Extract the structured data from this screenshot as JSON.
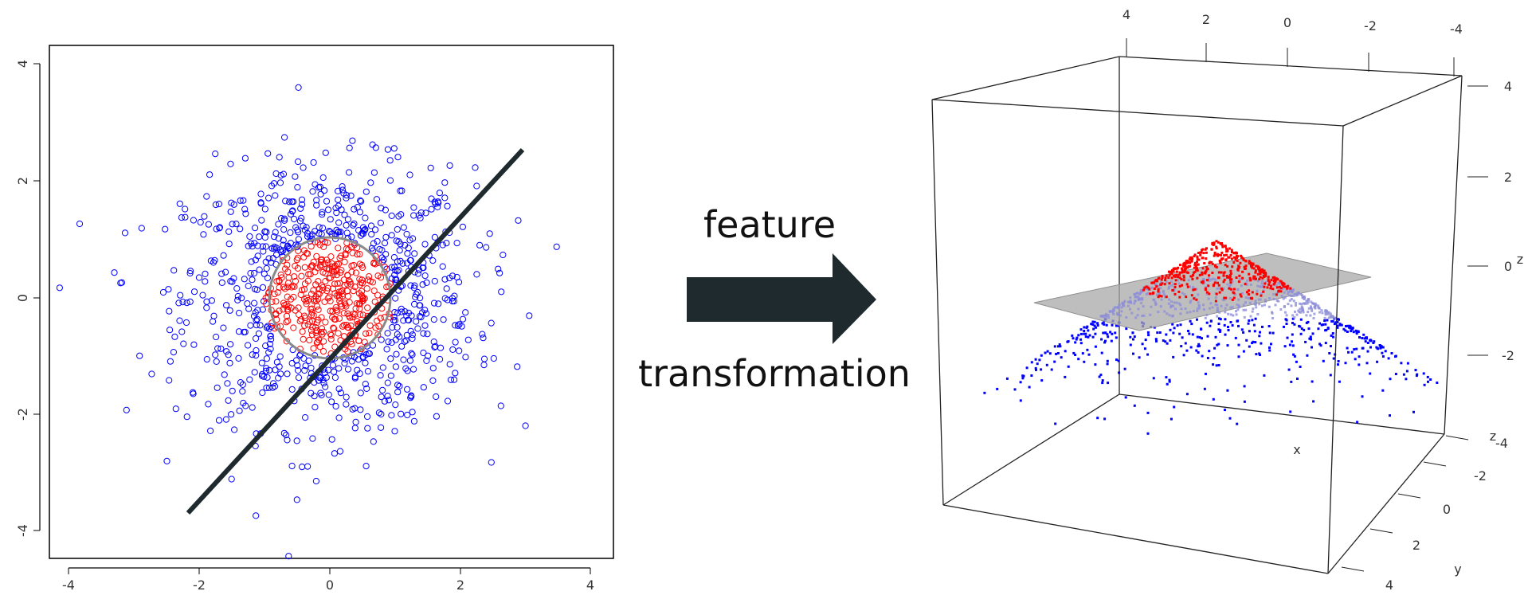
{
  "left_plot": {
    "x_ticks": [
      "-4",
      "-2",
      "0",
      "2",
      "4"
    ],
    "y_ticks": [
      "-4",
      "-2",
      "0",
      "2",
      "4"
    ],
    "xlim": [
      -4,
      4
    ],
    "ylim": [
      -4,
      4
    ],
    "inner_class_color": "#ff0000",
    "outer_class_color": "#0000ff",
    "boundary_circle_color": "#8a8a8a",
    "separating_line_color": "#1f2a2e"
  },
  "arrow": {
    "label_top": "feature",
    "label_bottom": "transformation",
    "color": "#1f2a2e"
  },
  "right_plot": {
    "top_axis_ticks": [
      "4",
      "2",
      "0",
      "-2",
      "-4"
    ],
    "right_axis_ticks": [
      "4",
      "2",
      "0",
      "-2"
    ],
    "z_label": "z",
    "y_depth_ticks": [
      "-4",
      "-2",
      "0",
      "2",
      "4"
    ],
    "x_label": "x",
    "y_label": "y",
    "inner_class_color": "#ff0000",
    "outer_class_color": "#0000ff",
    "plane_color": "#b0b0b0"
  }
}
